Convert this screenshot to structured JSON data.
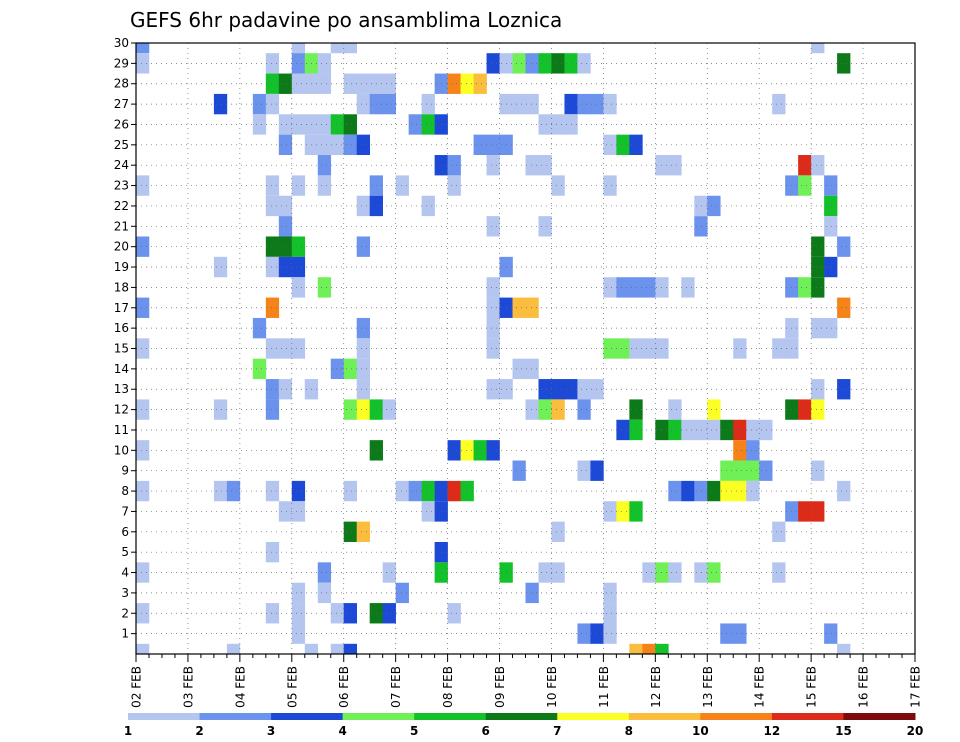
{
  "chart_data": {
    "type": "heatmap",
    "title": "GEFS 6hr padavine po ansamblima Loznica",
    "x_tick_labels": [
      "02 FEB",
      "03 FEB",
      "04 FEB",
      "05 FEB",
      "06 FEB",
      "07 FEB",
      "08 FEB",
      "09 FEB",
      "10 FEB",
      "11 FEB",
      "12 FEB",
      "13 FEB",
      "14 FEB",
      "15 FEB",
      "16 FEB",
      "17 FEB"
    ],
    "x_steps_per_day": 4,
    "x_steps_total": 60,
    "y_range": [
      0,
      30
    ],
    "y_tick_labels": [
      "1",
      "2",
      "3",
      "4",
      "5",
      "6",
      "7",
      "8",
      "9",
      "10",
      "11",
      "12",
      "13",
      "14",
      "15",
      "16",
      "17",
      "18",
      "19",
      "20",
      "21",
      "22",
      "23",
      "24",
      "25",
      "26",
      "27",
      "28",
      "29",
      "30"
    ],
    "grid": true,
    "legend": {
      "placement": "bottom",
      "thresholds": [
        "1",
        "2",
        "3",
        "4",
        "5",
        "6",
        "7",
        "8",
        "10",
        "12",
        "15",
        "20"
      ],
      "colors": [
        "#b4c6f0",
        "#6b92ec",
        "#1c49d6",
        "#6ff057",
        "#13c22a",
        "#0c7a18",
        "#fbff24",
        "#fbbd3e",
        "#f6831a",
        "#dc2b19",
        "#7e0a0e"
      ]
    },
    "cells": [
      [
        0,
        30,
        1
      ],
      [
        0,
        29,
        0
      ],
      [
        0,
        23,
        0
      ],
      [
        0,
        20,
        1
      ],
      [
        0,
        17,
        1
      ],
      [
        0,
        15,
        0
      ],
      [
        0,
        12,
        0
      ],
      [
        0,
        10,
        0
      ],
      [
        0,
        8,
        0
      ],
      [
        0,
        4,
        0
      ],
      [
        0,
        2,
        0
      ],
      [
        0,
        0,
        0
      ],
      [
        6,
        27,
        2
      ],
      [
        6,
        19,
        0
      ],
      [
        6,
        12,
        0
      ],
      [
        6,
        8,
        0
      ],
      [
        7,
        8,
        1
      ],
      [
        7,
        0,
        0
      ],
      [
        9,
        27,
        1
      ],
      [
        9,
        26,
        0
      ],
      [
        9,
        16,
        1
      ],
      [
        9,
        14,
        3
      ],
      [
        10,
        29,
        0
      ],
      [
        10,
        28,
        4
      ],
      [
        10,
        27,
        0
      ],
      [
        10,
        23,
        0
      ],
      [
        10,
        22,
        0
      ],
      [
        10,
        20,
        5
      ],
      [
        10,
        19,
        0
      ],
      [
        10,
        17,
        8
      ],
      [
        10,
        15,
        0
      ],
      [
        10,
        13,
        1
      ],
      [
        10,
        12,
        1
      ],
      [
        10,
        8,
        0
      ],
      [
        10,
        5,
        0
      ],
      [
        10,
        2,
        0
      ],
      [
        11,
        28,
        5
      ],
      [
        11,
        26,
        0
      ],
      [
        11,
        25,
        1
      ],
      [
        11,
        22,
        0
      ],
      [
        11,
        21,
        1
      ],
      [
        11,
        20,
        5
      ],
      [
        11,
        19,
        2
      ],
      [
        11,
        15,
        0
      ],
      [
        11,
        13,
        0
      ],
      [
        11,
        7,
        0
      ],
      [
        12,
        30,
        0
      ],
      [
        12,
        29,
        1
      ],
      [
        12,
        28,
        0
      ],
      [
        12,
        26,
        0
      ],
      [
        12,
        23,
        0
      ],
      [
        12,
        20,
        4
      ],
      [
        12,
        19,
        2
      ],
      [
        12,
        18,
        0
      ],
      [
        12,
        15,
        0
      ],
      [
        12,
        8,
        2
      ],
      [
        12,
        7,
        0
      ],
      [
        12,
        3,
        0
      ],
      [
        12,
        2,
        0
      ],
      [
        12,
        1,
        0
      ],
      [
        13,
        29,
        3
      ],
      [
        13,
        28,
        0
      ],
      [
        13,
        26,
        0
      ],
      [
        13,
        25,
        0
      ],
      [
        13,
        13,
        0
      ],
      [
        13,
        0,
        0
      ],
      [
        14,
        29,
        0
      ],
      [
        14,
        28,
        0
      ],
      [
        14,
        26,
        0
      ],
      [
        14,
        25,
        0
      ],
      [
        14,
        24,
        1
      ],
      [
        14,
        23,
        0
      ],
      [
        14,
        18,
        3
      ],
      [
        14,
        4,
        1
      ],
      [
        14,
        3,
        0
      ],
      [
        15,
        30,
        0
      ],
      [
        15,
        26,
        4
      ],
      [
        15,
        25,
        0
      ],
      [
        15,
        14,
        1
      ],
      [
        15,
        2,
        0
      ],
      [
        15,
        0,
        0
      ],
      [
        16,
        30,
        0
      ],
      [
        16,
        28,
        0
      ],
      [
        16,
        26,
        5
      ],
      [
        16,
        25,
        1
      ],
      [
        16,
        14,
        3
      ],
      [
        16,
        12,
        3
      ],
      [
        16,
        8,
        0
      ],
      [
        16,
        6,
        5
      ],
      [
        16,
        2,
        2
      ],
      [
        16,
        0,
        2
      ],
      [
        17,
        28,
        0
      ],
      [
        17,
        27,
        0
      ],
      [
        17,
        25,
        2
      ],
      [
        17,
        22,
        0
      ],
      [
        17,
        20,
        1
      ],
      [
        17,
        16,
        1
      ],
      [
        17,
        15,
        0
      ],
      [
        17,
        14,
        0
      ],
      [
        17,
        13,
        0
      ],
      [
        17,
        12,
        6
      ],
      [
        17,
        6,
        7
      ],
      [
        18,
        28,
        0
      ],
      [
        18,
        27,
        1
      ],
      [
        18,
        23,
        1
      ],
      [
        18,
        22,
        2
      ],
      [
        18,
        12,
        4
      ],
      [
        18,
        10,
        5
      ],
      [
        18,
        2,
        5
      ],
      [
        19,
        28,
        0
      ],
      [
        19,
        27,
        1
      ],
      [
        19,
        12,
        0
      ],
      [
        19,
        4,
        0
      ],
      [
        19,
        2,
        2
      ],
      [
        20,
        23,
        0
      ],
      [
        20,
        8,
        0
      ],
      [
        20,
        3,
        1
      ],
      [
        21,
        26,
        1
      ],
      [
        21,
        8,
        1
      ],
      [
        22,
        27,
        0
      ],
      [
        22,
        26,
        4
      ],
      [
        22,
        22,
        0
      ],
      [
        22,
        8,
        4
      ],
      [
        22,
        7,
        0
      ],
      [
        23,
        28,
        1
      ],
      [
        23,
        26,
        2
      ],
      [
        23,
        24,
        2
      ],
      [
        23,
        8,
        2
      ],
      [
        23,
        7,
        2
      ],
      [
        23,
        5,
        2
      ],
      [
        23,
        4,
        4
      ],
      [
        24,
        28,
        8
      ],
      [
        24,
        24,
        1
      ],
      [
        24,
        23,
        0
      ],
      [
        24,
        10,
        2
      ],
      [
        24,
        8,
        9
      ],
      [
        24,
        2,
        0
      ],
      [
        25,
        28,
        6
      ],
      [
        25,
        10,
        6
      ],
      [
        25,
        8,
        4
      ],
      [
        26,
        28,
        7
      ],
      [
        26,
        25,
        1
      ],
      [
        26,
        10,
        4
      ],
      [
        27,
        29,
        2
      ],
      [
        27,
        25,
        1
      ],
      [
        27,
        24,
        0
      ],
      [
        27,
        21,
        0
      ],
      [
        27,
        18,
        0
      ],
      [
        27,
        17,
        0
      ],
      [
        27,
        16,
        0
      ],
      [
        27,
        15,
        0
      ],
      [
        27,
        13,
        0
      ],
      [
        27,
        10,
        2
      ],
      [
        28,
        29,
        0
      ],
      [
        28,
        27,
        0
      ],
      [
        28,
        25,
        1
      ],
      [
        28,
        19,
        1
      ],
      [
        28,
        17,
        2
      ],
      [
        28,
        13,
        0
      ],
      [
        28,
        4,
        4
      ],
      [
        29,
        29,
        3
      ],
      [
        29,
        27,
        0
      ],
      [
        29,
        17,
        7
      ],
      [
        29,
        14,
        0
      ],
      [
        29,
        9,
        1
      ],
      [
        30,
        29,
        1
      ],
      [
        30,
        27,
        0
      ],
      [
        30,
        24,
        0
      ],
      [
        30,
        17,
        7
      ],
      [
        30,
        14,
        0
      ],
      [
        30,
        12,
        0
      ],
      [
        30,
        3,
        1
      ],
      [
        31,
        29,
        4
      ],
      [
        31,
        26,
        0
      ],
      [
        31,
        24,
        0
      ],
      [
        31,
        21,
        0
      ],
      [
        31,
        13,
        2
      ],
      [
        31,
        12,
        3
      ],
      [
        31,
        4,
        0
      ],
      [
        32,
        29,
        5
      ],
      [
        32,
        26,
        0
      ],
      [
        32,
        23,
        0
      ],
      [
        32,
        13,
        2
      ],
      [
        32,
        12,
        7
      ],
      [
        32,
        6,
        0
      ],
      [
        32,
        4,
        0
      ],
      [
        33,
        29,
        4
      ],
      [
        33,
        27,
        2
      ],
      [
        33,
        26,
        0
      ],
      [
        33,
        13,
        2
      ],
      [
        34,
        29,
        0
      ],
      [
        34,
        27,
        1
      ],
      [
        34,
        13,
        0
      ],
      [
        34,
        12,
        1
      ],
      [
        34,
        9,
        0
      ],
      [
        34,
        1,
        1
      ],
      [
        35,
        27,
        1
      ],
      [
        35,
        13,
        0
      ],
      [
        35,
        9,
        2
      ],
      [
        35,
        1,
        2
      ],
      [
        36,
        27,
        0
      ],
      [
        36,
        25,
        0
      ],
      [
        36,
        23,
        0
      ],
      [
        36,
        18,
        0
      ],
      [
        36,
        15,
        3
      ],
      [
        36,
        7,
        0
      ],
      [
        36,
        3,
        0
      ],
      [
        36,
        2,
        0
      ],
      [
        36,
        1,
        0
      ],
      [
        37,
        25,
        4
      ],
      [
        37,
        18,
        1
      ],
      [
        37,
        15,
        3
      ],
      [
        37,
        11,
        2
      ],
      [
        37,
        7,
        6
      ],
      [
        38,
        25,
        2
      ],
      [
        38,
        18,
        1
      ],
      [
        38,
        15,
        0
      ],
      [
        38,
        12,
        5
      ],
      [
        38,
        11,
        4
      ],
      [
        38,
        7,
        4
      ],
      [
        38,
        0,
        7
      ],
      [
        39,
        18,
        1
      ],
      [
        39,
        15,
        0
      ],
      [
        39,
        4,
        0
      ],
      [
        39,
        0,
        8
      ],
      [
        40,
        24,
        0
      ],
      [
        40,
        18,
        0
      ],
      [
        40,
        15,
        0
      ],
      [
        40,
        11,
        5
      ],
      [
        40,
        4,
        3
      ],
      [
        40,
        0,
        4
      ],
      [
        41,
        24,
        0
      ],
      [
        41,
        12,
        0
      ],
      [
        41,
        11,
        4
      ],
      [
        41,
        8,
        1
      ],
      [
        41,
        4,
        0
      ],
      [
        42,
        18,
        0
      ],
      [
        42,
        11,
        0
      ],
      [
        42,
        8,
        2
      ],
      [
        43,
        21,
        1
      ],
      [
        43,
        22,
        0
      ],
      [
        43,
        11,
        0
      ],
      [
        43,
        8,
        1
      ],
      [
        43,
        4,
        0
      ],
      [
        44,
        22,
        1
      ],
      [
        44,
        12,
        6
      ],
      [
        44,
        11,
        0
      ],
      [
        44,
        8,
        5
      ],
      [
        44,
        4,
        3
      ],
      [
        45,
        9,
        3
      ],
      [
        45,
        8,
        6
      ],
      [
        45,
        1,
        1
      ],
      [
        45,
        11,
        5
      ],
      [
        46,
        15,
        0
      ],
      [
        46,
        11,
        9
      ],
      [
        46,
        10,
        8
      ],
      [
        46,
        9,
        3
      ],
      [
        46,
        8,
        6
      ],
      [
        46,
        1,
        1
      ],
      [
        47,
        11,
        0
      ],
      [
        47,
        10,
        1
      ],
      [
        47,
        9,
        3
      ],
      [
        47,
        8,
        0
      ],
      [
        48,
        11,
        0
      ],
      [
        48,
        9,
        1
      ],
      [
        49,
        27,
        0
      ],
      [
        49,
        6,
        0
      ],
      [
        49,
        15,
        0
      ],
      [
        49,
        4,
        0
      ],
      [
        50,
        23,
        1
      ],
      [
        50,
        18,
        1
      ],
      [
        50,
        16,
        0
      ],
      [
        50,
        15,
        0
      ],
      [
        50,
        12,
        5
      ],
      [
        50,
        7,
        1
      ],
      [
        51,
        24,
        9
      ],
      [
        51,
        23,
        3
      ],
      [
        51,
        18,
        3
      ],
      [
        51,
        12,
        9
      ],
      [
        51,
        7,
        9
      ],
      [
        52,
        30,
        0
      ],
      [
        52,
        24,
        0
      ],
      [
        52,
        20,
        5
      ],
      [
        52,
        19,
        5
      ],
      [
        52,
        18,
        5
      ],
      [
        52,
        16,
        0
      ],
      [
        52,
        13,
        0
      ],
      [
        52,
        12,
        6
      ],
      [
        52,
        9,
        0
      ],
      [
        52,
        7,
        9
      ],
      [
        53,
        23,
        1
      ],
      [
        53,
        22,
        4
      ],
      [
        53,
        21,
        0
      ],
      [
        53,
        19,
        2
      ],
      [
        53,
        16,
        0
      ],
      [
        53,
        1,
        1
      ],
      [
        54,
        29,
        5
      ],
      [
        54,
        20,
        1
      ],
      [
        54,
        17,
        8
      ],
      [
        54,
        13,
        2
      ],
      [
        54,
        8,
        0
      ],
      [
        54,
        0,
        0
      ]
    ]
  }
}
